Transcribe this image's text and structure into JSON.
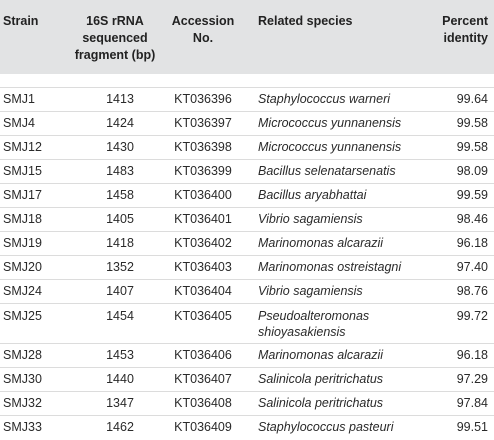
{
  "table": {
    "headers": {
      "strain": "Strain",
      "fragment_line1": "16S rRNA",
      "fragment_line2": "sequenced",
      "fragment_line3": "fragment (bp)",
      "accession_line1": "Accession",
      "accession_line2": "No.",
      "species": "Related species",
      "percent_line1": "Percent",
      "percent_line2": "identity"
    },
    "rows": [
      {
        "strain": "SMJ1",
        "fragment": "1413",
        "accession": "KT036396",
        "species": "Staphylococcus warneri",
        "percent": "99.64"
      },
      {
        "strain": "SMJ4",
        "fragment": "1424",
        "accession": "KT036397",
        "species": "Micrococcus yunnanensis",
        "percent": "99.58"
      },
      {
        "strain": "SMJ12",
        "fragment": "1430",
        "accession": "KT036398",
        "species": "Micrococcus yunnanensis",
        "percent": "99.58"
      },
      {
        "strain": "SMJ15",
        "fragment": "1483",
        "accession": "KT036399",
        "species": "Bacillus selenatarsenatis",
        "percent": "98.09"
      },
      {
        "strain": "SMJ17",
        "fragment": "1458",
        "accession": "KT036400",
        "species": "Bacillus aryabhattai",
        "percent": "99.59"
      },
      {
        "strain": "SMJ18",
        "fragment": "1405",
        "accession": "KT036401",
        "species": "Vibrio sagamiensis",
        "percent": "98.46"
      },
      {
        "strain": "SMJ19",
        "fragment": "1418",
        "accession": "KT036402",
        "species": "Marinomonas alcarazii",
        "percent": "96.18"
      },
      {
        "strain": "SMJ20",
        "fragment": "1352",
        "accession": "KT036403",
        "species": "Marinomonas ostreistagni",
        "percent": "97.40"
      },
      {
        "strain": "SMJ24",
        "fragment": "1407",
        "accession": "KT036404",
        "species": "Vibrio sagamiensis",
        "percent": "98.76"
      },
      {
        "strain": "SMJ25",
        "fragment": "1454",
        "accession": "KT036405",
        "species": "Pseudoalteromonas shioyasakiensis",
        "percent": "99.72"
      },
      {
        "strain": "SMJ28",
        "fragment": "1453",
        "accession": "KT036406",
        "species": "Marinomonas alcarazii",
        "percent": "96.18"
      },
      {
        "strain": "SMJ30",
        "fragment": "1440",
        "accession": "KT036407",
        "species": "Salinicola peritrichatus",
        "percent": "97.29"
      },
      {
        "strain": "SMJ32",
        "fragment": "1347",
        "accession": "KT036408",
        "species": "Salinicola peritrichatus",
        "percent": "97.84"
      },
      {
        "strain": "SMJ33",
        "fragment": "1462",
        "accession": "KT036409",
        "species": "Staphylococcus pasteuri",
        "percent": "99.51"
      }
    ]
  }
}
